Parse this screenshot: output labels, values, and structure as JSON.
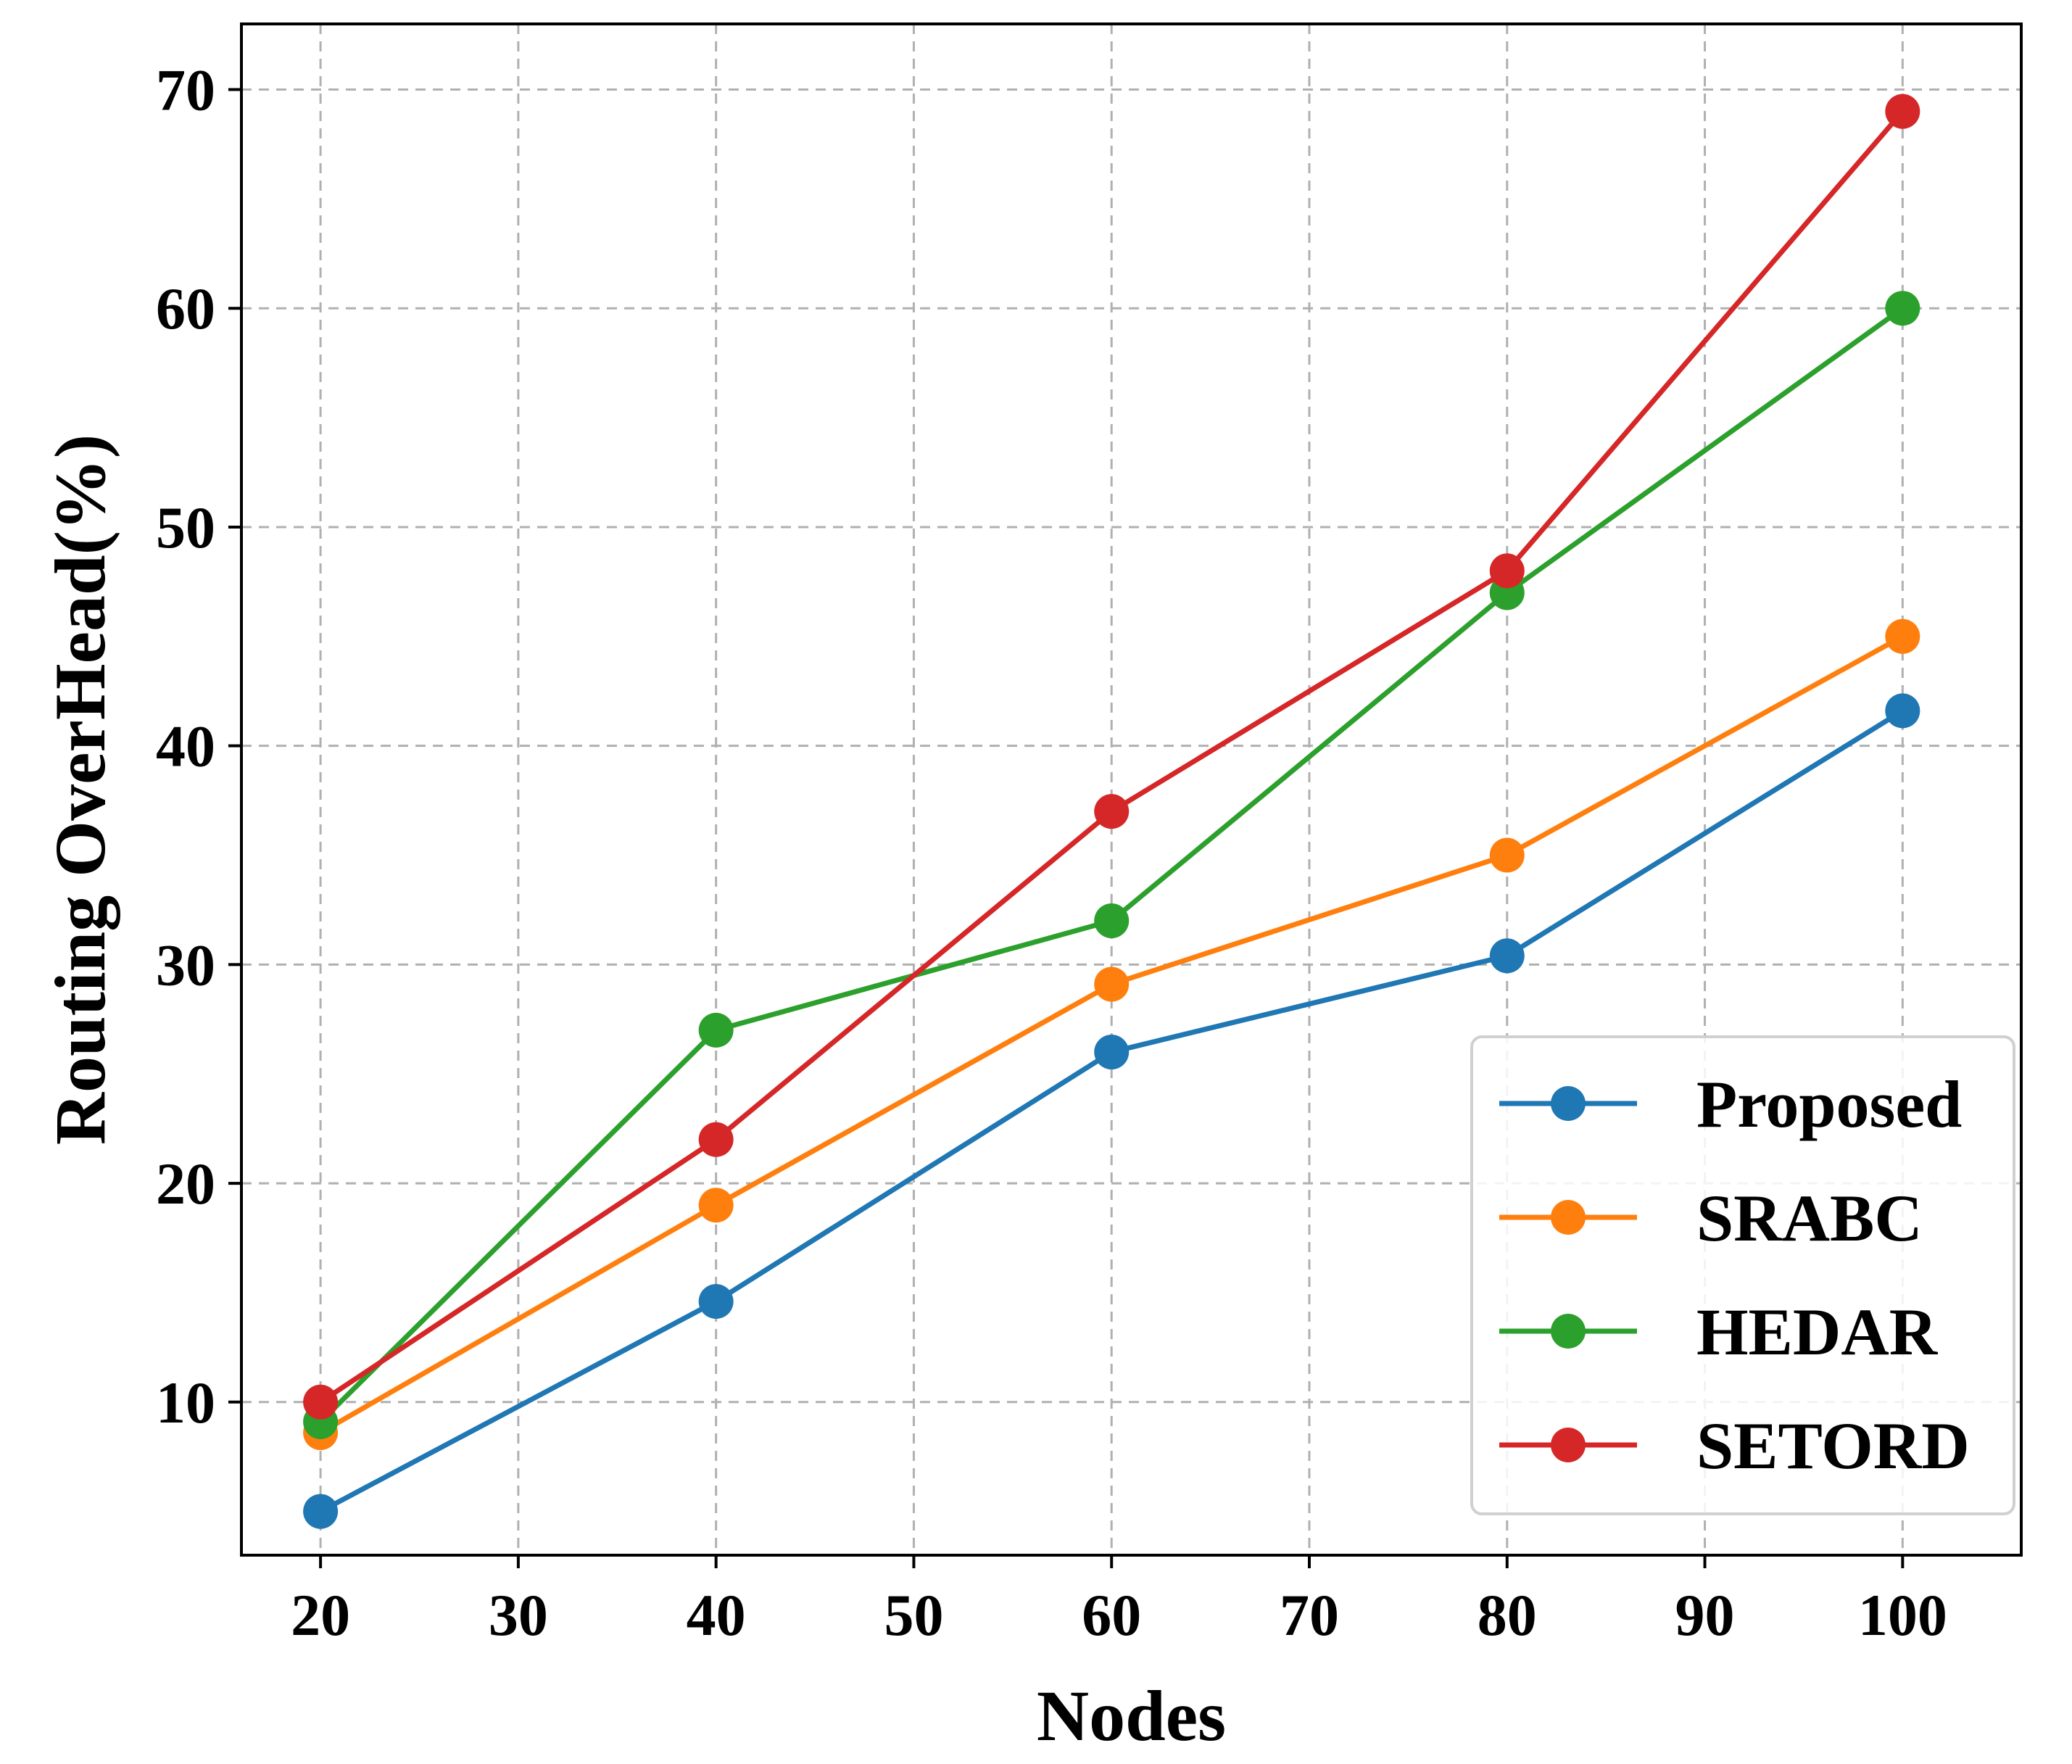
{
  "chart_data": {
    "type": "line",
    "title": "",
    "xlabel": "Nodes",
    "ylabel": "Routing OverHead(%)",
    "xlim": [
      16,
      106
    ],
    "ylim": [
      3,
      73
    ],
    "x_ticks": [
      20,
      30,
      40,
      50,
      60,
      70,
      80,
      90,
      100
    ],
    "y_ticks": [
      10,
      20,
      30,
      40,
      50,
      60,
      70
    ],
    "grid": true,
    "legend_position": "lower-right",
    "x": [
      20,
      40,
      60,
      80,
      100
    ],
    "series": [
      {
        "name": "Proposed",
        "color": "#1f77b4",
        "values": [
          5,
          14.6,
          26,
          30.4,
          41.6
        ]
      },
      {
        "name": "SRABC",
        "color": "#ff7f0e",
        "values": [
          8.6,
          19,
          29.1,
          35,
          45
        ]
      },
      {
        "name": "HEDAR",
        "color": "#2ca02c",
        "values": [
          9.1,
          27,
          32,
          47,
          60
        ]
      },
      {
        "name": "SETORD",
        "color": "#d62728",
        "values": [
          10,
          22,
          37,
          48,
          69
        ]
      }
    ]
  }
}
